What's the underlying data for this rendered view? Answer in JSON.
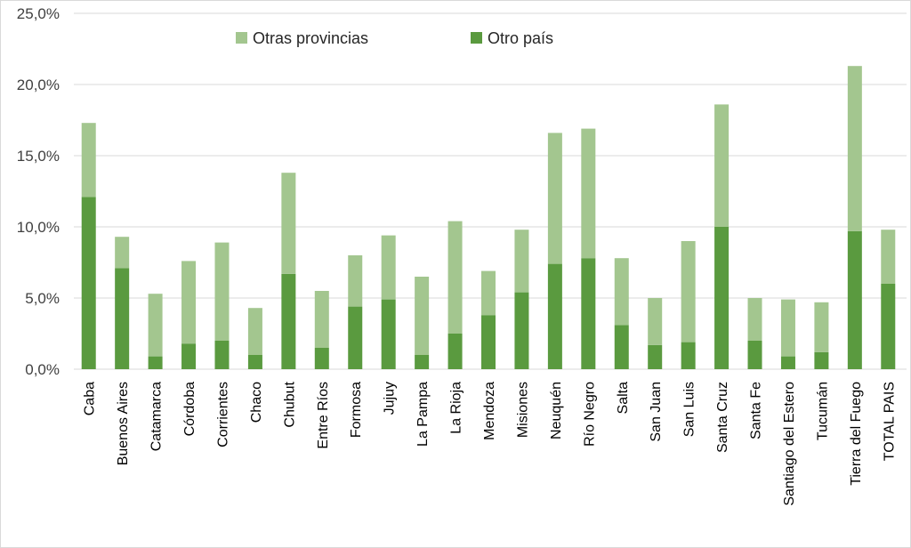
{
  "chart_data": {
    "type": "bar",
    "stacked": true,
    "categories": [
      "Caba",
      "Buenos Aires",
      "Catamarca",
      "Córdoba",
      "Corrientes",
      "Chaco",
      "Chubut",
      "Entre Ríos",
      "Formosa",
      "Jujuy",
      "La Pampa",
      "La Rioja",
      "Mendoza",
      "Misiones",
      "Neuquén",
      "Río Negro",
      "Salta",
      "San Juan",
      "San Luis",
      "Santa Cruz",
      "Santa Fe",
      "Santiago del Estero",
      "Tucumán",
      "Tierra del Fuego",
      "TOTAL PAIS"
    ],
    "series": [
      {
        "name": "Otro país",
        "color": "#5a9a3f",
        "values": [
          12.1,
          7.1,
          0.9,
          1.8,
          2.0,
          1.0,
          6.7,
          1.5,
          4.4,
          4.9,
          1.0,
          2.5,
          3.8,
          5.4,
          7.4,
          7.8,
          3.1,
          1.7,
          1.9,
          10.0,
          2.0,
          0.9,
          1.2,
          9.7,
          6.0
        ]
      },
      {
        "name": "Otras provincias",
        "color": "#a3c68f",
        "values": [
          5.2,
          2.2,
          4.4,
          5.8,
          6.9,
          3.3,
          7.1,
          4.0,
          3.6,
          4.5,
          5.5,
          7.9,
          3.1,
          4.4,
          9.2,
          9.1,
          4.7,
          3.3,
          7.1,
          8.6,
          3.0,
          4.0,
          3.5,
          11.6,
          3.8
        ]
      }
    ],
    "legend": [
      "Otras provincias",
      "Otro país"
    ],
    "legend_position": "top",
    "ylim": [
      0,
      25
    ],
    "yticks": [
      "0,0%",
      "5,0%",
      "10,0%",
      "15,0%",
      "20,0%",
      "25,0%"
    ],
    "grid": true,
    "title": "",
    "xlabel": "",
    "ylabel": ""
  }
}
